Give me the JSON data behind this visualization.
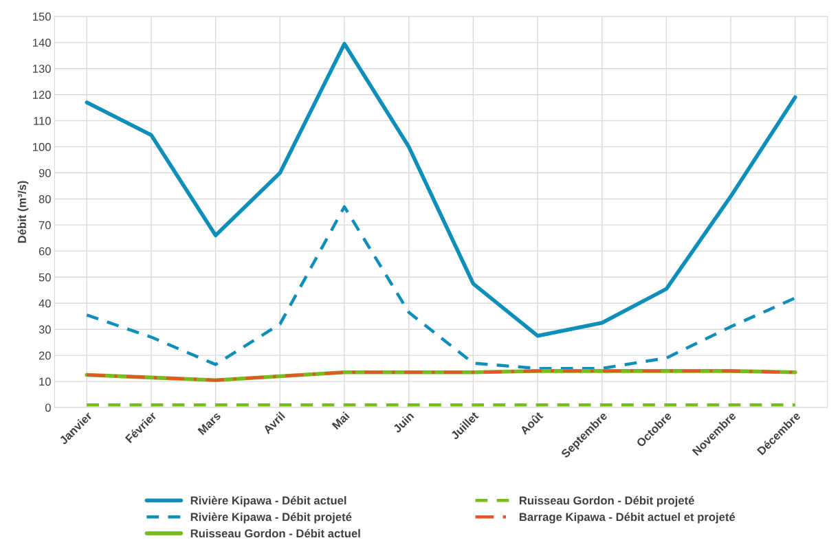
{
  "chart_data": {
    "type": "line",
    "ylabel": "Débit (m³/s)",
    "categories": [
      "Janvier",
      "Février",
      "Mars",
      "Avril",
      "Mai",
      "Juin",
      "Juillet",
      "Août",
      "Septembre",
      "Octobre",
      "Novembre",
      "Décembre"
    ],
    "series": [
      {
        "name": "Rivière Kipawa - Débit actuel",
        "color": "#0e8fba",
        "line_style": "solid",
        "values": [
          117,
          104.5,
          66,
          90,
          139.5,
          100,
          47.5,
          27.5,
          32.5,
          45.5,
          81,
          119
        ]
      },
      {
        "name": "Rivière Kipawa - Débit projeté",
        "color": "#0e8fba",
        "line_style": "dashed",
        "values": [
          35.5,
          27,
          16.5,
          32,
          77,
          36.5,
          17,
          15,
          15,
          19,
          31,
          42
        ]
      },
      {
        "name": "Ruisseau Gordon - Débit actuel",
        "color": "#77bd1f",
        "line_style": "solid",
        "values": [
          12.5,
          11.5,
          10.5,
          12,
          13.5,
          13.5,
          13.5,
          14,
          14,
          14,
          14,
          13.5
        ]
      },
      {
        "name": "Ruisseau Gordon - Débit projeté",
        "color": "#77bd1f",
        "line_style": "dashed",
        "values": [
          1,
          1,
          1,
          1,
          1,
          1,
          1,
          1,
          1,
          1,
          1,
          1
        ]
      },
      {
        "name": "Barrage Kipawa - Débit actuel et projeté",
        "color": "#e0582a",
        "line_style": "dashdot",
        "values": [
          12.5,
          11.5,
          10.5,
          12,
          13.5,
          13.5,
          13.5,
          14,
          14,
          14,
          14,
          13.5
        ]
      }
    ],
    "ylim": [
      0,
      150
    ],
    "yticks": [
      0,
      10,
      20,
      30,
      40,
      50,
      60,
      70,
      80,
      90,
      100,
      110,
      120,
      130,
      140,
      150
    ],
    "grid": true,
    "legend": "bottom",
    "marker": "none"
  }
}
